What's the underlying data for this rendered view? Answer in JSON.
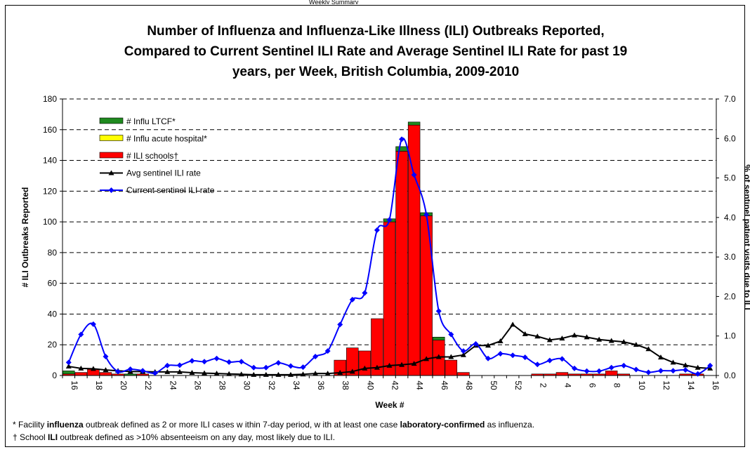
{
  "header_fragment": "Weekly Summary",
  "chart_data": {
    "type": "bar",
    "title_lines": [
      "Number of Influenza and Influenza-Like Illness (ILI) Outbreaks Reported,",
      "Compared to Current Sentinel ILI Rate and Average Sentinel ILI Rate for past 19",
      "years, per Week, British Columbia, 2009-2010"
    ],
    "xlabel": "Week #",
    "ylabel": "# ILI Outbreaks Reported",
    "y2label": "% of sentinel patient visits due to ILI",
    "ylim": [
      0,
      180
    ],
    "y2lim": [
      0,
      7.0
    ],
    "y_ticks": [
      "0",
      "20",
      "40",
      "60",
      "80",
      "100",
      "120",
      "140",
      "160",
      "180"
    ],
    "y2_ticks": [
      "0.0",
      "1.0",
      "2.0",
      "3.0",
      "4.0",
      "5.0",
      "6.0",
      "7.0"
    ],
    "grid": "horizontal dashed",
    "legend_position": "top-left",
    "categories": [
      16,
      17,
      18,
      19,
      20,
      21,
      22,
      23,
      24,
      25,
      26,
      27,
      28,
      29,
      30,
      31,
      32,
      33,
      34,
      35,
      36,
      37,
      38,
      39,
      40,
      41,
      42,
      43,
      44,
      45,
      46,
      47,
      48,
      49,
      50,
      51,
      52,
      1,
      2,
      3,
      4,
      5,
      6,
      7,
      8,
      9,
      10,
      11,
      12,
      13,
      14,
      15,
      16
    ],
    "series": [
      {
        "name": "# Influ LTCF*",
        "kind": "bar",
        "color": "#1f8a1f",
        "values": [
          2,
          0,
          0,
          0,
          0,
          1,
          0,
          0,
          0,
          0,
          0,
          0,
          0,
          0,
          0,
          0,
          0,
          0,
          0,
          0,
          0,
          0,
          0,
          0,
          0,
          0,
          2,
          3,
          2,
          2,
          2,
          0,
          0,
          0,
          0,
          0,
          0,
          0,
          0,
          0,
          0,
          0,
          0,
          0,
          0,
          0,
          0,
          0,
          0,
          0,
          0,
          0,
          0
        ]
      },
      {
        "name": "# Influ acute hospital*",
        "kind": "bar",
        "color": "#ffff00",
        "values": [
          0,
          0,
          0,
          0,
          0,
          0,
          0,
          0,
          0,
          0,
          0,
          0,
          0,
          0,
          0,
          0,
          0,
          0,
          0,
          0,
          0,
          0,
          0,
          0,
          0,
          0,
          0,
          0,
          0,
          0,
          0,
          0,
          0,
          0,
          0,
          0,
          0,
          0,
          0,
          0,
          0,
          0,
          0,
          0,
          0,
          0,
          0,
          0,
          0,
          0,
          0,
          0,
          0
        ]
      },
      {
        "name": "# ILI schools†",
        "kind": "bar",
        "color": "#ff0000",
        "values": [
          1,
          2,
          4,
          2,
          1,
          0,
          1,
          0,
          0,
          0,
          0,
          0,
          0,
          0,
          0,
          0,
          0,
          0,
          0,
          0,
          0,
          0,
          10,
          18,
          16,
          37,
          100,
          146,
          163,
          104,
          23,
          10,
          2,
          0,
          0,
          0,
          0,
          0,
          1,
          1,
          2,
          1,
          1,
          1,
          3,
          1,
          0,
          0,
          0,
          0,
          1,
          1,
          0
        ]
      },
      {
        "name": "Avg sentinel ILI rate",
        "kind": "line",
        "color": "#000000",
        "marker": "triangle",
        "axis": "right",
        "values": [
          0.23,
          0.18,
          0.17,
          0.14,
          0.12,
          0.1,
          0.1,
          0.09,
          0.09,
          0.09,
          0.07,
          0.06,
          0.05,
          0.04,
          0.03,
          0.02,
          0.02,
          0.02,
          0.02,
          0.03,
          0.05,
          0.05,
          0.07,
          0.1,
          0.18,
          0.2,
          0.25,
          0.27,
          0.3,
          0.42,
          0.47,
          0.47,
          0.52,
          0.76,
          0.76,
          0.87,
          1.29,
          1.05,
          0.99,
          0.9,
          0.94,
          1.02,
          0.97,
          0.91,
          0.88,
          0.85,
          0.78,
          0.67,
          0.46,
          0.33,
          0.26,
          0.2,
          0.18
        ]
      },
      {
        "name": "Current sentinel ILI rate",
        "kind": "line",
        "color": "#0000ff",
        "marker": "diamond",
        "axis": "right",
        "values": [
          0.33,
          1.04,
          1.3,
          0.48,
          0.1,
          0.16,
          0.12,
          0.06,
          0.25,
          0.26,
          0.37,
          0.35,
          0.43,
          0.34,
          0.35,
          0.2,
          0.2,
          0.32,
          0.24,
          0.21,
          0.48,
          0.62,
          1.29,
          1.92,
          2.09,
          3.68,
          3.94,
          5.98,
          5.08,
          4.07,
          1.63,
          1.04,
          0.62,
          0.8,
          0.43,
          0.55,
          0.51,
          0.46,
          0.28,
          0.38,
          0.42,
          0.18,
          0.11,
          0.11,
          0.2,
          0.25,
          0.15,
          0.08,
          0.12,
          0.12,
          0.14,
          0.04,
          0.25
        ]
      }
    ]
  },
  "footnotes": {
    "line1_plain1": "* Facility ",
    "line1_bold1": "influenza",
    "line1_plain2": " outbreak defined as 2 or more ILI cases w ithin 7-day period, w ith at least one case ",
    "line1_bold2": "laboratory-confirmed",
    "line1_plain3": " as influenza.",
    "line2_plain1": "† School ",
    "line2_bold1": "ILI",
    "line2_plain2": " outbreak defined as >10% absenteeism on any day, most likely due to ILI."
  }
}
